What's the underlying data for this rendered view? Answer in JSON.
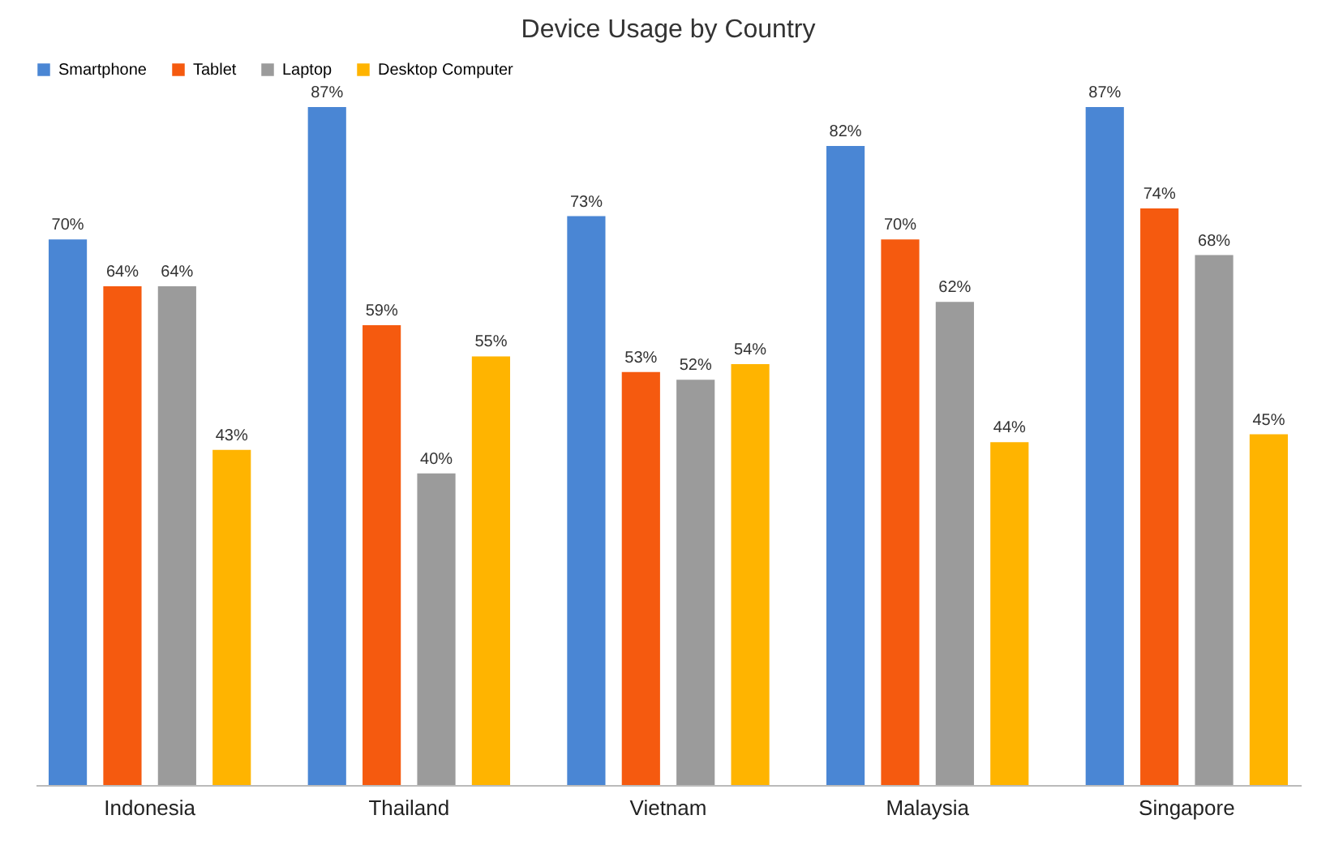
{
  "chart_data": {
    "type": "bar",
    "title": "Device Usage by Country",
    "categories": [
      "Indonesia",
      "Thailand",
      "Vietnam",
      "Malaysia",
      "Singapore"
    ],
    "series": [
      {
        "name": "Smartphone",
        "color": "#4a86d4",
        "values": [
          70,
          87,
          73,
          82,
          87
        ],
        "value_labels": [
          "70%",
          "87%",
          "73%",
          "82%",
          "87%"
        ]
      },
      {
        "name": "Tablet",
        "color": "#f55a0f",
        "values": [
          64,
          59,
          53,
          70,
          74
        ],
        "value_labels": [
          "64%",
          "59%",
          "53%",
          "70%",
          "74%"
        ]
      },
      {
        "name": "Laptop",
        "color": "#9b9b9b",
        "values": [
          64,
          40,
          52,
          62,
          68
        ],
        "value_labels": [
          "64%",
          "40%",
          "52%",
          "62%",
          "68%"
        ]
      },
      {
        "name": "Desktop Computer",
        "color": "#ffb400",
        "values": [
          43,
          55,
          54,
          44,
          45
        ],
        "value_labels": [
          "43%",
          "55%",
          "54%",
          "44%",
          "45%"
        ]
      }
    ],
    "legend": "top",
    "grid": false
  }
}
